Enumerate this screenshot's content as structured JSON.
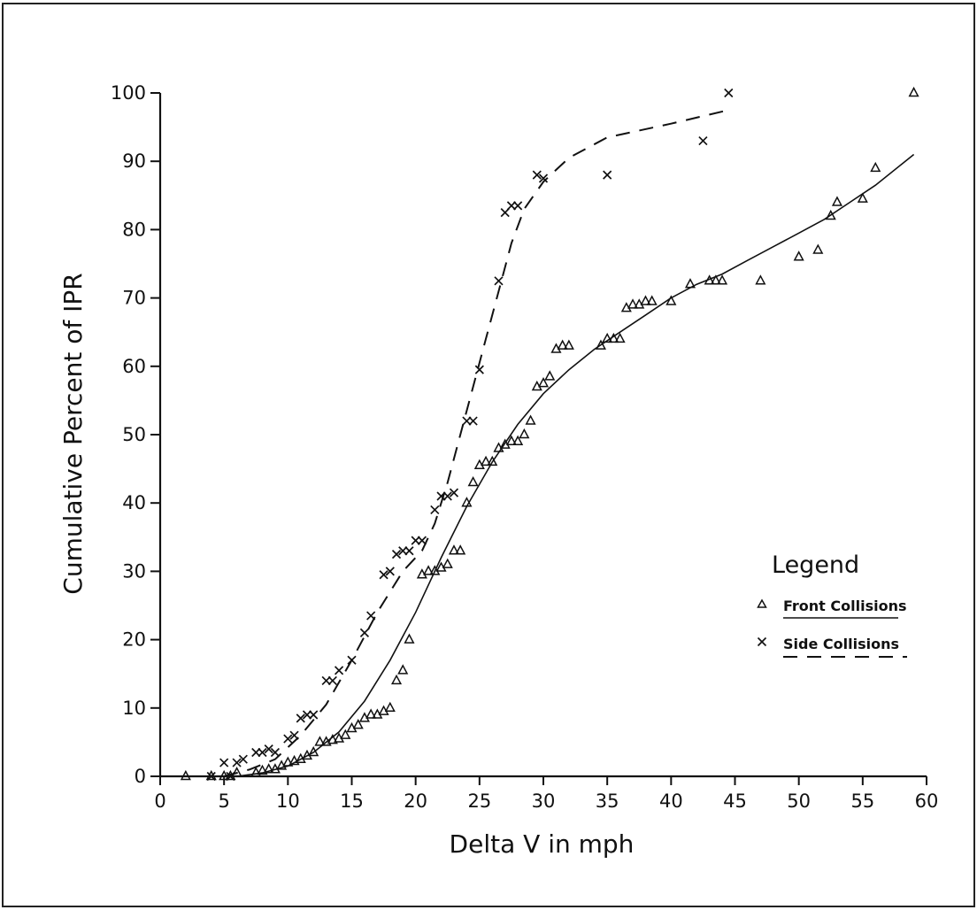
{
  "chart_data": {
    "type": "scatter",
    "title": "",
    "xlabel": "Delta V in mph",
    "ylabel": "Cumulative Percent of IPR",
    "xlim": [
      0,
      60
    ],
    "ylim": [
      0,
      100
    ],
    "xticks": [
      "0",
      "5",
      "10",
      "15",
      "20",
      "25",
      "30",
      "35",
      "40",
      "45",
      "50",
      "55",
      "60"
    ],
    "yticks": [
      "0",
      "10",
      "20",
      "30",
      "40",
      "50",
      "60",
      "70",
      "80",
      "90",
      "100"
    ],
    "grid": false,
    "legend": {
      "title": "Legend",
      "placement": "right",
      "entries": [
        {
          "label": "Front Collisions",
          "marker": "triangle",
          "line": "solid"
        },
        {
          "label": "Side Collisions",
          "marker": "x",
          "line": "dashed"
        }
      ]
    },
    "series": [
      {
        "name": "Front Collisions",
        "marker": "triangle",
        "points": [
          [
            2,
            0
          ],
          [
            4,
            0
          ],
          [
            5,
            0
          ],
          [
            5.5,
            0
          ],
          [
            6,
            0.5
          ],
          [
            7.5,
            0.5
          ],
          [
            8,
            0.8
          ],
          [
            8.5,
            1
          ],
          [
            9,
            1
          ],
          [
            9.5,
            1.5
          ],
          [
            10,
            2
          ],
          [
            10.5,
            2.2
          ],
          [
            11,
            2.5
          ],
          [
            11.5,
            3
          ],
          [
            12,
            3.5
          ],
          [
            12.5,
            5
          ],
          [
            13,
            5
          ],
          [
            13.5,
            5.3
          ],
          [
            14,
            5.5
          ],
          [
            14.5,
            6
          ],
          [
            15,
            7
          ],
          [
            15.5,
            7.5
          ],
          [
            16,
            8.5
          ],
          [
            16.5,
            9
          ],
          [
            17,
            9
          ],
          [
            17.5,
            9.5
          ],
          [
            18,
            10
          ],
          [
            18.5,
            14
          ],
          [
            19,
            15.5
          ],
          [
            19.5,
            20
          ],
          [
            20.5,
            29.5
          ],
          [
            21,
            30
          ],
          [
            21.5,
            30
          ],
          [
            22,
            30.5
          ],
          [
            22.5,
            31
          ],
          [
            23,
            33
          ],
          [
            23.5,
            33
          ],
          [
            24,
            40
          ],
          [
            24.5,
            43
          ],
          [
            25,
            45.5
          ],
          [
            25.5,
            46
          ],
          [
            26,
            46
          ],
          [
            26.5,
            48
          ],
          [
            27,
            48.5
          ],
          [
            27.5,
            49
          ],
          [
            28,
            49
          ],
          [
            28.5,
            50
          ],
          [
            29,
            52
          ],
          [
            29.5,
            57
          ],
          [
            30,
            57.5
          ],
          [
            30.5,
            58.5
          ],
          [
            31,
            62.5
          ],
          [
            31.5,
            63
          ],
          [
            32,
            63
          ],
          [
            34.5,
            63
          ],
          [
            35,
            64
          ],
          [
            35.5,
            64
          ],
          [
            36,
            64
          ],
          [
            36.5,
            68.5
          ],
          [
            37,
            69
          ],
          [
            37.5,
            69
          ],
          [
            38,
            69.5
          ],
          [
            38.5,
            69.5
          ],
          [
            40,
            69.5
          ],
          [
            41.5,
            72
          ],
          [
            43,
            72.5
          ],
          [
            43.5,
            72.5
          ],
          [
            44,
            72.5
          ],
          [
            47,
            72.5
          ],
          [
            50,
            76
          ],
          [
            51.5,
            77
          ],
          [
            52.5,
            82
          ],
          [
            53,
            84
          ],
          [
            55,
            84.5
          ],
          [
            56,
            89
          ],
          [
            59,
            100
          ]
        ]
      },
      {
        "name": "Side Collisions",
        "marker": "x",
        "points": [
          [
            4,
            0
          ],
          [
            5,
            2
          ],
          [
            5.5,
            0
          ],
          [
            6,
            2
          ],
          [
            6.5,
            2.5
          ],
          [
            7.5,
            3.5
          ],
          [
            8,
            3.5
          ],
          [
            8.5,
            4
          ],
          [
            9,
            3.5
          ],
          [
            10,
            5.5
          ],
          [
            10.5,
            6
          ],
          [
            11,
            8.5
          ],
          [
            11.5,
            9
          ],
          [
            12,
            9
          ],
          [
            13,
            14
          ],
          [
            13.5,
            14
          ],
          [
            14,
            15.5
          ],
          [
            15,
            17
          ],
          [
            16,
            21
          ],
          [
            16.5,
            23.5
          ],
          [
            17.5,
            29.5
          ],
          [
            18,
            30
          ],
          [
            18.5,
            32.5
          ],
          [
            19,
            33
          ],
          [
            19.5,
            33
          ],
          [
            20,
            34.5
          ],
          [
            20.5,
            34.5
          ],
          [
            21.5,
            39
          ],
          [
            22,
            41
          ],
          [
            22.5,
            41
          ],
          [
            23,
            41.5
          ],
          [
            24,
            52
          ],
          [
            24.5,
            52
          ],
          [
            25,
            59.5
          ],
          [
            26.5,
            72.5
          ],
          [
            27,
            82.5
          ],
          [
            27.5,
            83.5
          ],
          [
            28,
            83.5
          ],
          [
            29.5,
            88
          ],
          [
            30,
            87.5
          ],
          [
            35,
            88
          ],
          [
            42.5,
            93
          ],
          [
            44.5,
            100
          ]
        ]
      }
    ],
    "fit_lines": [
      {
        "name": "Front Collisions",
        "style": "solid",
        "points": [
          [
            6,
            0
          ],
          [
            8,
            0.5
          ],
          [
            10,
            1.5
          ],
          [
            12,
            3.5
          ],
          [
            14,
            6.5
          ],
          [
            16,
            11
          ],
          [
            18,
            17
          ],
          [
            20,
            24
          ],
          [
            22,
            32
          ],
          [
            24,
            39.5
          ],
          [
            26,
            46
          ],
          [
            28,
            51.5
          ],
          [
            30,
            56
          ],
          [
            32,
            59.5
          ],
          [
            34,
            62.5
          ],
          [
            36,
            65
          ],
          [
            38,
            67.5
          ],
          [
            40,
            70
          ],
          [
            42,
            72
          ],
          [
            44,
            73.5
          ],
          [
            46,
            75.5
          ],
          [
            48,
            77.5
          ],
          [
            50,
            79.5
          ],
          [
            52,
            81.5
          ],
          [
            54,
            84
          ],
          [
            56,
            86.5
          ],
          [
            58,
            89.5
          ],
          [
            59,
            91
          ]
        ]
      },
      {
        "name": "Side Collisions",
        "style": "dashed",
        "points": [
          [
            5,
            0
          ],
          [
            7,
            1
          ],
          [
            9,
            2.5
          ],
          [
            11,
            6
          ],
          [
            13,
            10.5
          ],
          [
            15,
            17
          ],
          [
            17,
            24
          ],
          [
            19,
            30
          ],
          [
            20.5,
            33
          ],
          [
            21.5,
            37
          ],
          [
            22.5,
            43
          ],
          [
            23.5,
            50
          ],
          [
            24.5,
            57
          ],
          [
            25.5,
            64
          ],
          [
            26.5,
            71
          ],
          [
            27.5,
            78
          ],
          [
            28.5,
            83
          ],
          [
            30,
            87
          ],
          [
            32,
            90.5
          ],
          [
            35,
            93.5
          ],
          [
            40,
            95.5
          ],
          [
            44.5,
            97.5
          ]
        ]
      }
    ]
  }
}
